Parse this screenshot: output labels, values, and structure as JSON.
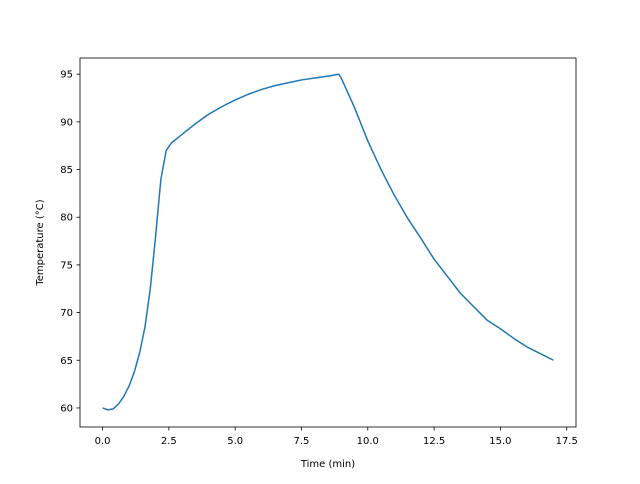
{
  "chart_data": {
    "type": "line",
    "xlabel": "Time (min)",
    "ylabel": "Temperature (°C)",
    "x": [
      0,
      0.2,
      0.4,
      0.6,
      0.8,
      1.0,
      1.2,
      1.4,
      1.6,
      1.8,
      2.0,
      2.2,
      2.4,
      2.6,
      3.0,
      3.5,
      4.0,
      4.5,
      5.0,
      5.5,
      6.0,
      6.5,
      7.0,
      7.5,
      8.0,
      8.5,
      8.9,
      9.0,
      9.5,
      10.0,
      10.5,
      11.0,
      11.5,
      12.0,
      12.5,
      13.0,
      13.5,
      14.0,
      14.5,
      15.0,
      15.5,
      16.0,
      16.5,
      17.0
    ],
    "series": [
      {
        "color": "#1f77b4",
        "values": [
          60,
          59.8,
          59.9,
          60.4,
          61.2,
          62.3,
          63.8,
          65.8,
          68.5,
          72.5,
          78,
          84,
          87,
          87.8,
          88.7,
          89.8,
          90.8,
          91.6,
          92.3,
          92.9,
          93.4,
          93.8,
          94.1,
          94.4,
          94.6,
          94.8,
          95.0,
          94.6,
          91.5,
          88,
          85,
          82.3,
          79.9,
          77.8,
          75.6,
          73.8,
          72,
          70.6,
          69.2,
          68.3,
          67.3,
          66.4,
          65.7,
          65.0
        ]
      }
    ],
    "xlim": [
      -0.85,
      17.85
    ],
    "ylim": [
      58.0,
      96.7
    ],
    "xticks": [
      {
        "value": 0,
        "label": "0.0"
      },
      2.5,
      {
        "value": 5,
        "label": "5.0"
      },
      7.5,
      {
        "value": 10,
        "label": "10.0"
      },
      12.5,
      {
        "value": 15,
        "label": "15.0"
      },
      17.5
    ],
    "yticks": [
      60,
      65,
      70,
      75,
      80,
      85,
      90,
      95
    ]
  }
}
